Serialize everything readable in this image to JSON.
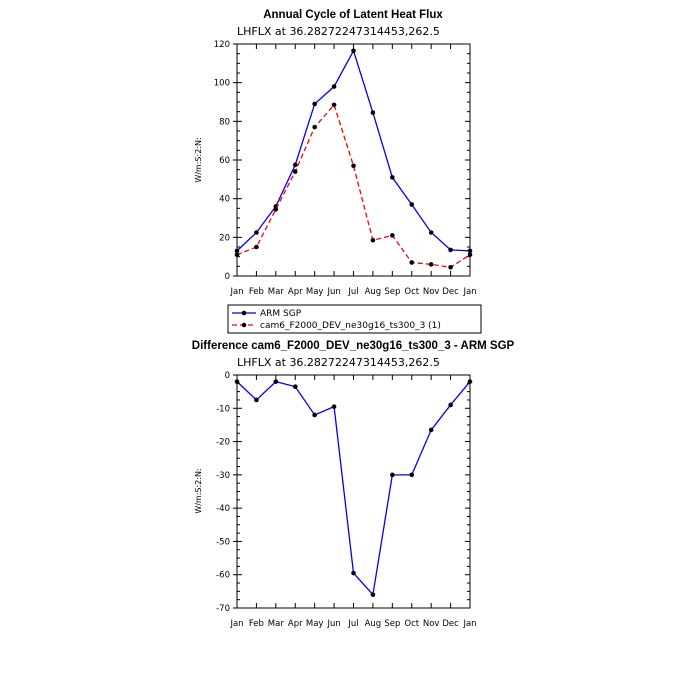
{
  "chart_data": [
    {
      "type": "line",
      "title": "Annual Cycle of Latent Heat Flux",
      "subtitle": "LHFLX  at  36.28272247314453,262.5",
      "ylabel": "W/m:S:2:N:",
      "categories": [
        "Jan",
        "Feb",
        "Mar",
        "Apr",
        "May",
        "Jun",
        "Jul",
        "Aug",
        "Sep",
        "Oct",
        "Nov",
        "Dec",
        "Jan"
      ],
      "ylim": [
        0,
        120
      ],
      "yticks": [
        0,
        20,
        40,
        60,
        80,
        100,
        120
      ],
      "series": [
        {
          "name": "ARM SGP",
          "color": "#0000ff",
          "dash": "solid",
          "values": [
            13,
            22.5,
            36,
            57.5,
            89,
            98,
            116.5,
            84.5,
            51,
            37,
            22.5,
            13.5,
            13
          ]
        },
        {
          "name": "cam6_F2000_DEV_ne30g16_ts300_3 (1)",
          "color": "#ff0000",
          "dash": "dashed",
          "values": [
            11,
            15,
            34.5,
            54,
            77,
            88.5,
            57,
            18.5,
            21,
            7,
            6,
            4.5,
            11
          ]
        }
      ]
    },
    {
      "type": "line",
      "title": "Difference cam6_F2000_DEV_ne30g16_ts300_3 - ARM SGP",
      "subtitle": "LHFLX  at  36.28272247314453,262.5",
      "ylabel": "W/m:S:2:N:",
      "categories": [
        "Jan",
        "Feb",
        "Mar",
        "Apr",
        "May",
        "Jun",
        "Jul",
        "Aug",
        "Sep",
        "Oct",
        "Nov",
        "Dec",
        "Jan"
      ],
      "ylim": [
        -70,
        0
      ],
      "yticks": [
        0,
        -10,
        -20,
        -30,
        -40,
        -50,
        -60,
        -70
      ],
      "series": [
        {
          "color": "#0000ff",
          "dash": "solid",
          "values": [
            -2,
            -7.5,
            -2,
            -3.5,
            -12,
            -9.5,
            -59.5,
            -66,
            -30,
            -30,
            -16.5,
            -9,
            -2
          ]
        }
      ]
    }
  ]
}
